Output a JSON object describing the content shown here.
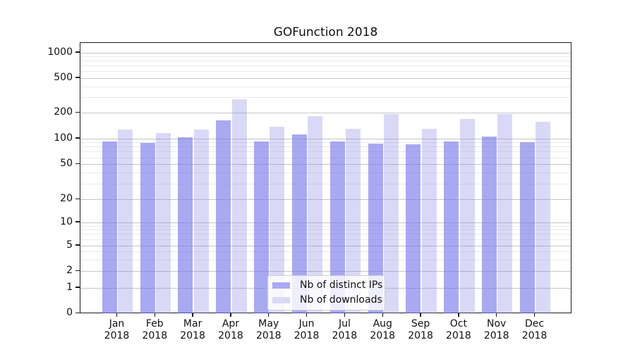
{
  "title": "GOFunction 2018",
  "legend": {
    "items": [
      {
        "label": "Nb of distinct IPs",
        "color": "#a9a9f2"
      },
      {
        "label": "Nb of downloads",
        "color": "#d9d9f7"
      }
    ]
  },
  "colors": {
    "distinct_ips_bar": "#a9a9f2",
    "downloads_bar": "#d9d9f7",
    "major_gridline": "#c6c6c6",
    "minor_gridline": "#eaeaea",
    "axis": "#1c1c1c",
    "background": "#ffffff"
  },
  "chart_data": {
    "type": "bar",
    "title": "GOFunction 2018",
    "categories": [
      "Jan 2018",
      "Feb 2018",
      "Mar 2018",
      "Apr 2018",
      "May 2018",
      "Jun 2018",
      "Jul 2018",
      "Aug 2018",
      "Sep 2018",
      "Oct 2018",
      "Nov 2018",
      "Dec 2018"
    ],
    "x_tick_line1": [
      "Jan",
      "Feb",
      "Mar",
      "Apr",
      "May",
      "Jun",
      "Jul",
      "Aug",
      "Sep",
      "Oct",
      "Nov",
      "Dec"
    ],
    "x_tick_line2": "2018",
    "series": [
      {
        "name": "Nb of distinct IPs",
        "color": "#a9a9f2",
        "fill": "rgba(116,116,234,0.62)",
        "values": [
          92,
          90,
          103,
          163,
          93,
          112,
          93,
          88,
          86,
          92,
          106,
          91
        ]
      },
      {
        "name": "Nb of downloads",
        "color": "#d9d9f7",
        "fill": "rgba(128,128,228,0.30)",
        "values": [
          127,
          117,
          128,
          285,
          139,
          182,
          131,
          194,
          130,
          171,
          194,
          156
        ]
      }
    ],
    "yscale": "symlog",
    "y_ticks": [
      0,
      1,
      2,
      5,
      10,
      20,
      50,
      100,
      200,
      500,
      1000
    ],
    "y_minor_ticks": [
      3,
      4,
      6,
      7,
      8,
      9,
      30,
      40,
      60,
      70,
      80,
      90,
      300,
      400,
      600,
      700,
      800,
      900
    ],
    "ylim": [
      0,
      1300
    ],
    "xlabel": "",
    "ylabel": "",
    "grid": true,
    "legend_position": "lower center"
  }
}
